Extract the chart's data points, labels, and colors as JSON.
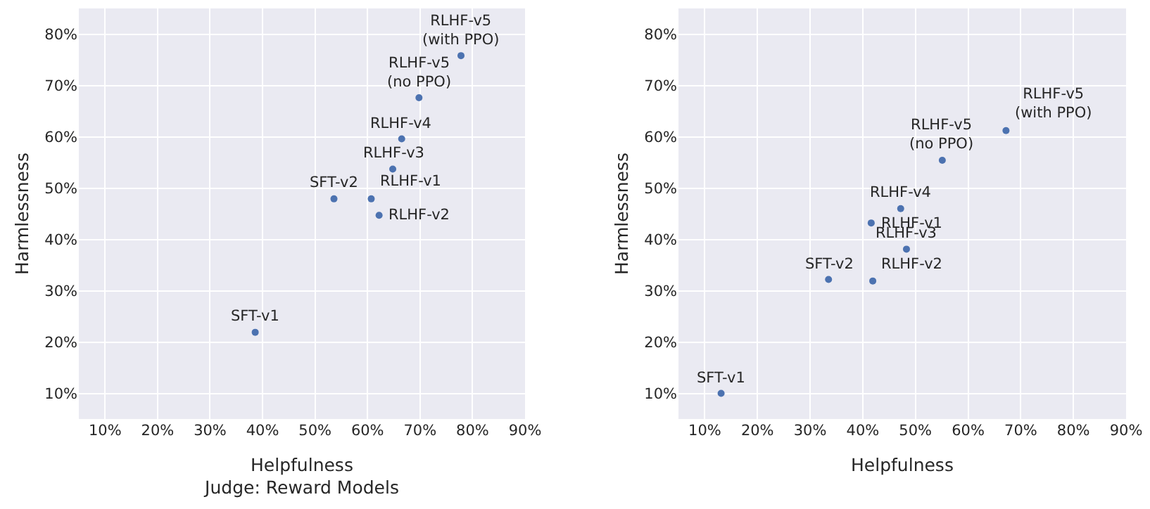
{
  "chart_data": [
    {
      "type": "scatter",
      "xlabel": "Helpfulness\nJudge: Reward Models",
      "ylabel": "Harmlessness",
      "xlim": [
        5,
        90
      ],
      "ylim": [
        5,
        85
      ],
      "xticks": [
        {
          "value": 10,
          "label": "10%"
        },
        {
          "value": 20,
          "label": "20%"
        },
        {
          "value": 30,
          "label": "30%"
        },
        {
          "value": 40,
          "label": "40%"
        },
        {
          "value": 50,
          "label": "50%"
        },
        {
          "value": 60,
          "label": "60%"
        },
        {
          "value": 70,
          "label": "70%"
        },
        {
          "value": 80,
          "label": "80%"
        },
        {
          "value": 90,
          "label": "90%"
        }
      ],
      "yticks": [
        {
          "value": 10,
          "label": "10%"
        },
        {
          "value": 20,
          "label": "20%"
        },
        {
          "value": 30,
          "label": "30%"
        },
        {
          "value": 40,
          "label": "40%"
        },
        {
          "value": 50,
          "label": "50%"
        },
        {
          "value": 60,
          "label": "60%"
        },
        {
          "value": 70,
          "label": "70%"
        },
        {
          "value": 80,
          "label": "80%"
        }
      ],
      "grid": true,
      "marker": "circle",
      "series": [
        {
          "color": "#4c72b0",
          "x": [
            38.6,
            53.6,
            60.7,
            62.2,
            64.8,
            66.5,
            69.8,
            77.8
          ],
          "values": [
            21.9,
            47.9,
            47.9,
            44.7,
            53.7,
            59.6,
            67.6,
            75.8
          ]
        }
      ],
      "annotations": [
        {
          "text": "SFT-v1",
          "x": 38.6,
          "y": 21.9
        },
        {
          "text": "SFT-v2",
          "x": 53.6,
          "y": 47.9
        },
        {
          "text": "RLHF-v1",
          "x": 60.7,
          "y": 47.9
        },
        {
          "text": "RLHF-v2",
          "x": 62.2,
          "y": 44.7
        },
        {
          "text": "RLHF-v3",
          "x": 64.8,
          "y": 53.7
        },
        {
          "text": "RLHF-v4",
          "x": 66.5,
          "y": 59.6
        },
        {
          "text": "RLHF-v5\n(no PPO)",
          "x": 69.8,
          "y": 67.6
        },
        {
          "text": "RLHF-v5\n(with PPO)",
          "x": 77.8,
          "y": 75.8
        }
      ]
    },
    {
      "type": "scatter",
      "xlabel": "Helpfulness",
      "ylabel": "Harmlessness",
      "xlim": [
        5,
        90
      ],
      "ylim": [
        5,
        85
      ],
      "xticks": [
        {
          "value": 10,
          "label": "10%"
        },
        {
          "value": 20,
          "label": "20%"
        },
        {
          "value": 30,
          "label": "30%"
        },
        {
          "value": 40,
          "label": "40%"
        },
        {
          "value": 50,
          "label": "50%"
        },
        {
          "value": 60,
          "label": "60%"
        },
        {
          "value": 70,
          "label": "70%"
        },
        {
          "value": 80,
          "label": "80%"
        },
        {
          "value": 90,
          "label": "90%"
        }
      ],
      "yticks": [
        {
          "value": 10,
          "label": "10%"
        },
        {
          "value": 20,
          "label": "20%"
        },
        {
          "value": 30,
          "label": "30%"
        },
        {
          "value": 40,
          "label": "40%"
        },
        {
          "value": 50,
          "label": "50%"
        },
        {
          "value": 60,
          "label": "60%"
        },
        {
          "value": 70,
          "label": "70%"
        },
        {
          "value": 80,
          "label": "80%"
        }
      ],
      "grid": true,
      "marker": "circle",
      "series": [
        {
          "color": "#4c72b0",
          "x": [
            13.1,
            33.5,
            41.6,
            41.9,
            48.3,
            47.2,
            55.1,
            67.2
          ],
          "values": [
            10,
            32.2,
            43.2,
            31.9,
            38.1,
            46.0,
            55.4,
            61.2
          ]
        }
      ],
      "annotations": [
        {
          "text": "SFT-v1",
          "x": 13.1,
          "y": 10
        },
        {
          "text": "SFT-v2",
          "x": 33.5,
          "y": 32.2
        },
        {
          "text": "RLHF-v1",
          "x": 41.6,
          "y": 43.2
        },
        {
          "text": "RLHF-v2",
          "x": 41.9,
          "y": 31.9
        },
        {
          "text": "RLHF-v3",
          "x": 48.3,
          "y": 38.1
        },
        {
          "text": "RLHF-v4",
          "x": 47.2,
          "y": 46.0
        },
        {
          "text": "RLHF-v5\n(no PPO)",
          "x": 55.1,
          "y": 55.4
        },
        {
          "text": "RLHF-v5\n(with PPO)",
          "x": 67.2,
          "y": 61.2
        }
      ]
    }
  ]
}
